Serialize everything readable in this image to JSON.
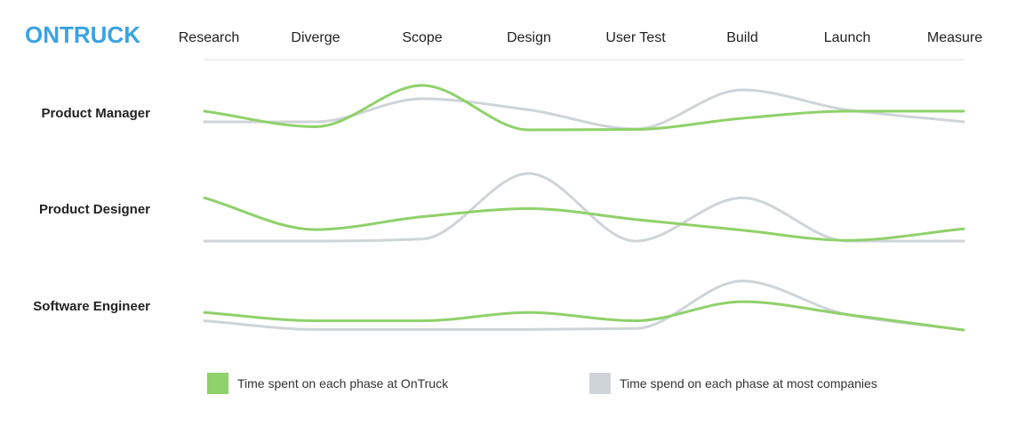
{
  "brand": {
    "logo_text": "ONTRUCK",
    "color": "#3aa3e3"
  },
  "chart_data": {
    "type": "line",
    "title": "",
    "xlabel": "",
    "ylabel": "",
    "categories": [
      "Research",
      "Diverge",
      "Scope",
      "Design",
      "User Test",
      "Build",
      "Launch",
      "Measure"
    ],
    "rows": [
      {
        "label": "Product Manager",
        "series": [
          {
            "key": "ontruck",
            "values": [
              0.42,
              0.07,
              1.0,
              0.0,
              0.01,
              0.26,
              0.42,
              0.42
            ]
          },
          {
            "key": "industry",
            "values": [
              0.18,
              0.18,
              0.7,
              0.45,
              0.02,
              0.9,
              0.45,
              0.18
            ]
          }
        ]
      },
      {
        "label": "Product Designer",
        "series": [
          {
            "key": "ontruck",
            "values": [
              0.64,
              0.17,
              0.36,
              0.48,
              0.32,
              0.16,
              0.01,
              0.18
            ]
          },
          {
            "key": "industry",
            "values": [
              0.0,
              0.0,
              0.03,
              1.0,
              0.0,
              0.64,
              0.0,
              0.0
            ]
          }
        ]
      },
      {
        "label": "Software Engineer",
        "series": [
          {
            "key": "ontruck",
            "values": [
              0.34,
              0.18,
              0.18,
              0.34,
              0.18,
              0.55,
              0.3,
              0.0
            ]
          },
          {
            "key": "industry",
            "values": [
              0.18,
              0.01,
              0.01,
              0.01,
              0.03,
              0.95,
              0.3,
              0.0
            ]
          }
        ]
      }
    ],
    "legend": {
      "placement": "bottom",
      "items": [
        {
          "key": "ontruck",
          "label": "Time spent on each phase at OnTruck",
          "color": "#8fd16a"
        },
        {
          "key": "industry",
          "label": "Time spend on each phase at most companies",
          "color": "#cfd4d8"
        }
      ]
    }
  }
}
